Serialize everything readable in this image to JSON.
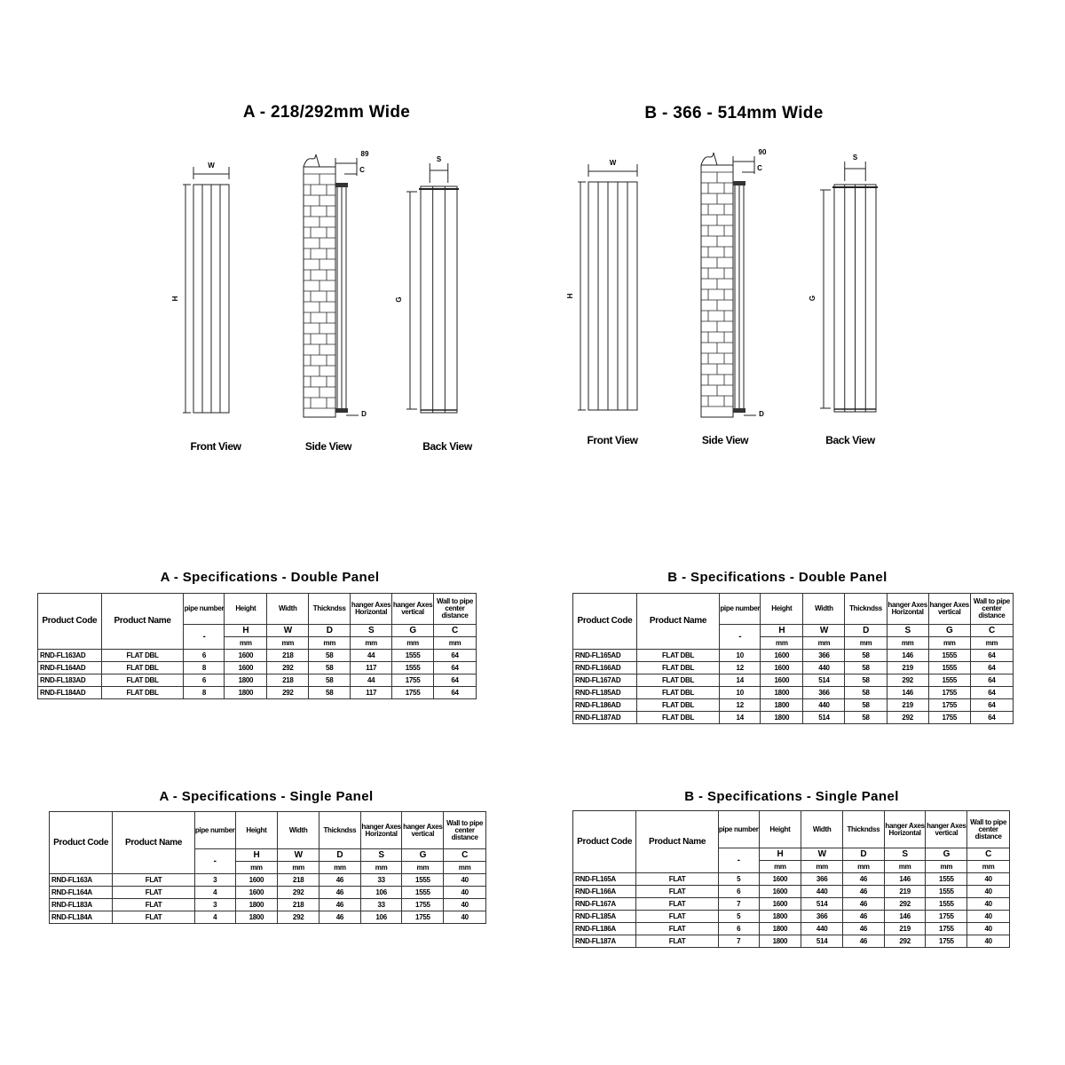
{
  "sections": {
    "a_title": "A - 218/292mm Wide",
    "b_title": "B - 366 - 514mm Wide"
  },
  "views": {
    "front": "Front View",
    "side": "Side View",
    "back": "Back View"
  },
  "dims": {
    "w": "W",
    "h": "H",
    "g": "G",
    "s": "S",
    "c": "C",
    "d": "D",
    "a_offset": "89",
    "b_offset": "90"
  },
  "headers": {
    "product_code": "Product Code",
    "product_name": "Product Name",
    "cols": [
      "pipe number",
      "Height",
      "Width",
      "Thickndss",
      "hanger Axes Horizontal",
      "hanger Axes vertical",
      "Wall to pipe center distance"
    ],
    "symbols": [
      "-",
      "H",
      "W",
      "D",
      "S",
      "G",
      "C"
    ],
    "units": [
      "mm",
      "mm",
      "mm",
      "mm",
      "mm",
      "mm"
    ]
  },
  "tables": [
    {
      "title": "A - Specifications - Double Panel",
      "rows": [
        [
          "RND-FL163AD",
          "FLAT DBL",
          "6",
          "1600",
          "218",
          "58",
          "44",
          "1555",
          "64"
        ],
        [
          "RND-FL164AD",
          "FLAT DBL",
          "8",
          "1600",
          "292",
          "58",
          "117",
          "1555",
          "64"
        ],
        [
          "RND-FL183AD",
          "FLAT DBL",
          "6",
          "1800",
          "218",
          "58",
          "44",
          "1755",
          "64"
        ],
        [
          "RND-FL184AD",
          "FLAT DBL",
          "8",
          "1800",
          "292",
          "58",
          "117",
          "1755",
          "64"
        ]
      ]
    },
    {
      "title": "B - Specifications - Double Panel",
      "rows": [
        [
          "RND-FL165AD",
          "FLAT DBL",
          "10",
          "1600",
          "366",
          "58",
          "146",
          "1555",
          "64"
        ],
        [
          "RND-FL166AD",
          "FLAT DBL",
          "12",
          "1600",
          "440",
          "58",
          "219",
          "1555",
          "64"
        ],
        [
          "RND-FL167AD",
          "FLAT DBL",
          "14",
          "1600",
          "514",
          "58",
          "292",
          "1555",
          "64"
        ],
        [
          "RND-FL185AD",
          "FLAT DBL",
          "10",
          "1800",
          "366",
          "58",
          "146",
          "1755",
          "64"
        ],
        [
          "RND-FL186AD",
          "FLAT DBL",
          "12",
          "1800",
          "440",
          "58",
          "219",
          "1755",
          "64"
        ],
        [
          "RND-FL187AD",
          "FLAT DBL",
          "14",
          "1800",
          "514",
          "58",
          "292",
          "1755",
          "64"
        ]
      ]
    },
    {
      "title": "A - Specifications - Single Panel",
      "rows": [
        [
          "RND-FL163A",
          "FLAT",
          "3",
          "1600",
          "218",
          "46",
          "33",
          "1555",
          "40"
        ],
        [
          "RND-FL164A",
          "FLAT",
          "4",
          "1600",
          "292",
          "46",
          "106",
          "1555",
          "40"
        ],
        [
          "RND-FL183A",
          "FLAT",
          "3",
          "1800",
          "218",
          "46",
          "33",
          "1755",
          "40"
        ],
        [
          "RND-FL184A",
          "FLAT",
          "4",
          "1800",
          "292",
          "46",
          "106",
          "1755",
          "40"
        ]
      ]
    },
    {
      "title": "B - Specifications - Single Panel",
      "rows": [
        [
          "RND-FL165A",
          "FLAT",
          "5",
          "1600",
          "366",
          "46",
          "146",
          "1555",
          "40"
        ],
        [
          "RND-FL166A",
          "FLAT",
          "6",
          "1600",
          "440",
          "46",
          "219",
          "1555",
          "40"
        ],
        [
          "RND-FL167A",
          "FLAT",
          "7",
          "1600",
          "514",
          "46",
          "292",
          "1555",
          "40"
        ],
        [
          "RND-FL185A",
          "FLAT",
          "5",
          "1800",
          "366",
          "46",
          "146",
          "1755",
          "40"
        ],
        [
          "RND-FL186A",
          "FLAT",
          "6",
          "1800",
          "440",
          "46",
          "219",
          "1755",
          "40"
        ],
        [
          "RND-FL187A",
          "FLAT",
          "7",
          "1800",
          "514",
          "46",
          "292",
          "1755",
          "40"
        ]
      ]
    }
  ]
}
